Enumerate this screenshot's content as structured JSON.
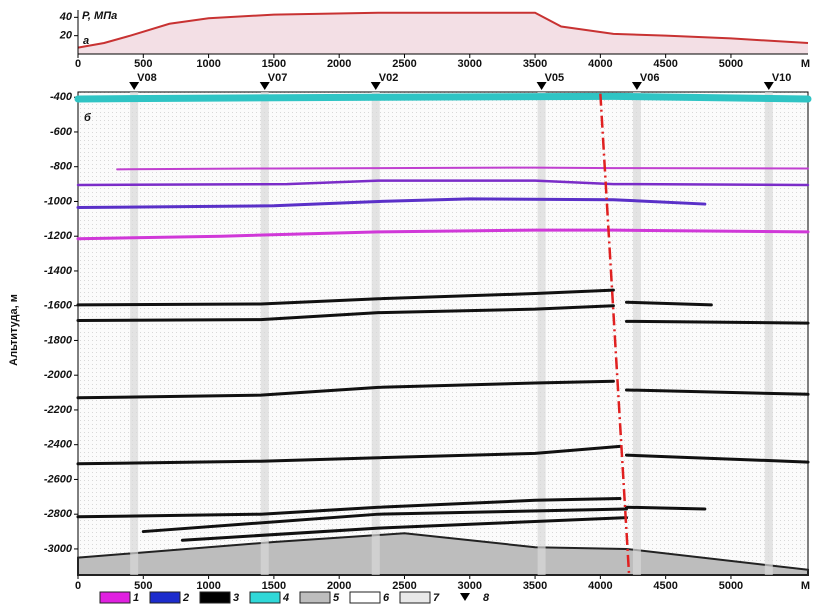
{
  "chart_data": [
    {
      "type": "area",
      "title": "P, МПа",
      "panel_label": "a",
      "x_unit": "M",
      "color": "#c83232",
      "fill": "#f3dfe5",
      "x": [
        0,
        200,
        400,
        700,
        1000,
        1500,
        2300,
        3500,
        3700,
        4100,
        4500,
        5000,
        5590
      ],
      "values": [
        7,
        12,
        20,
        33,
        39,
        43,
        45,
        45,
        30,
        22,
        20,
        17,
        12
      ],
      "xlim": [
        0,
        5590
      ],
      "xticks": [
        0,
        500,
        1000,
        1500,
        2000,
        2500,
        3000,
        3500,
        4000,
        4500,
        5000
      ],
      "ylim": [
        0,
        48
      ],
      "yticks": [
        20,
        40
      ]
    },
    {
      "type": "section",
      "panel_label": "б",
      "y_label": "Альтитуда, м",
      "x_unit": "M",
      "xlim": [
        0,
        5590
      ],
      "xticks": [
        0,
        500,
        1000,
        1500,
        2000,
        2500,
        3000,
        3500,
        4000,
        4500,
        5000
      ],
      "ylim": [
        -3150,
        -370
      ],
      "yticks": [
        -400,
        -600,
        -800,
        -1000,
        -1200,
        -1400,
        -1600,
        -1800,
        -2000,
        -2200,
        -2400,
        -2600,
        -2800,
        -3000
      ],
      "wells": [
        {
          "name": "V08",
          "x": 430
        },
        {
          "name": "V07",
          "x": 1430
        },
        {
          "name": "V02",
          "x": 2280
        },
        {
          "name": "V05",
          "x": 3550
        },
        {
          "name": "V06",
          "x": 4280
        },
        {
          "name": "V10",
          "x": 5290
        }
      ],
      "basement": {
        "color": "#bdbdbd",
        "x": [
          0,
          1500,
          2500,
          3500,
          4200,
          5590
        ],
        "y": [
          -3050,
          -2960,
          -2910,
          -2990,
          -3000,
          -3120
        ]
      },
      "fault": {
        "color": "#e02020",
        "x": [
          4000,
          4220
        ],
        "y": [
          -380,
          -3150
        ]
      },
      "horizons": [
        {
          "color": "#2fc4c4",
          "width": 7,
          "x": [
            0,
            2300,
            4100,
            5590
          ],
          "y": [
            -410,
            -400,
            -395,
            -410
          ]
        },
        {
          "color": "#c040d0",
          "width": 2,
          "x": [
            300,
            1500,
            3500,
            4100,
            5590
          ],
          "y": [
            -815,
            -810,
            -805,
            -808,
            -810
          ]
        },
        {
          "color": "#7a2cc8",
          "width": 2.5,
          "x": [
            0,
            1600,
            2300,
            3500,
            4100,
            5590
          ],
          "y": [
            -905,
            -900,
            -880,
            -880,
            -900,
            -905
          ]
        },
        {
          "color": "#5a30c8",
          "width": 3,
          "x": [
            0,
            1500,
            2300,
            3000,
            4100,
            4800
          ],
          "y": [
            -1035,
            -1025,
            -1000,
            -985,
            -990,
            -1015
          ]
        },
        {
          "color": "#d038d8",
          "width": 3,
          "x": [
            0,
            1100,
            2300,
            3500,
            4100,
            5590
          ],
          "y": [
            -1215,
            -1200,
            -1175,
            -1165,
            -1165,
            -1175
          ]
        },
        {
          "color": "#111111",
          "width": 3,
          "x": [
            0,
            1400,
            2300,
            3500,
            4100
          ],
          "y": [
            -1595,
            -1590,
            -1560,
            -1530,
            -1510
          ]
        },
        {
          "color": "#111111",
          "width": 3,
          "x": [
            4200,
            4850
          ],
          "y": [
            -1580,
            -1595
          ]
        },
        {
          "color": "#111111",
          "width": 3,
          "x": [
            0,
            1400,
            2300,
            3500,
            4100
          ],
          "y": [
            -1685,
            -1680,
            -1640,
            -1620,
            -1600
          ]
        },
        {
          "color": "#111111",
          "width": 3,
          "x": [
            4200,
            5590
          ],
          "y": [
            -1690,
            -1700
          ]
        },
        {
          "color": "#111111",
          "width": 3,
          "x": [
            0,
            1400,
            2300,
            3500,
            4100
          ],
          "y": [
            -2130,
            -2115,
            -2070,
            -2045,
            -2035
          ]
        },
        {
          "color": "#111111",
          "width": 3,
          "x": [
            4200,
            5590
          ],
          "y": [
            -2085,
            -2110
          ]
        },
        {
          "color": "#111111",
          "width": 3,
          "x": [
            0,
            1400,
            2300,
            3500,
            4150
          ],
          "y": [
            -2510,
            -2495,
            -2475,
            -2450,
            -2410
          ]
        },
        {
          "color": "#111111",
          "width": 3,
          "x": [
            4200,
            5590
          ],
          "y": [
            -2460,
            -2500
          ]
        },
        {
          "color": "#111111",
          "width": 3,
          "x": [
            0,
            1400,
            2300,
            3500,
            4150
          ],
          "y": [
            -2815,
            -2800,
            -2760,
            -2720,
            -2710
          ]
        },
        {
          "color": "#111111",
          "width": 3,
          "x": [
            4200,
            4800
          ],
          "y": [
            -2760,
            -2770
          ]
        },
        {
          "color": "#111111",
          "width": 3,
          "x": [
            500,
            2300,
            4200
          ],
          "y": [
            -2900,
            -2800,
            -2770
          ]
        },
        {
          "color": "#111111",
          "width": 3,
          "x": [
            800,
            2300,
            4200
          ],
          "y": [
            -2950,
            -2880,
            -2820
          ]
        }
      ],
      "legend": [
        {
          "label": "1",
          "color": "#e020e0"
        },
        {
          "label": "2",
          "color": "#1c2ccc"
        },
        {
          "label": "3",
          "color": "#000000"
        },
        {
          "label": "4",
          "color": "#2fd8d8"
        },
        {
          "label": "5",
          "color": "#bdbdbd"
        },
        {
          "label": "6",
          "color": "#ffffff"
        },
        {
          "label": "7",
          "color": "#e8e8e8"
        },
        {
          "label": "8",
          "color": "#000000"
        }
      ]
    }
  ]
}
